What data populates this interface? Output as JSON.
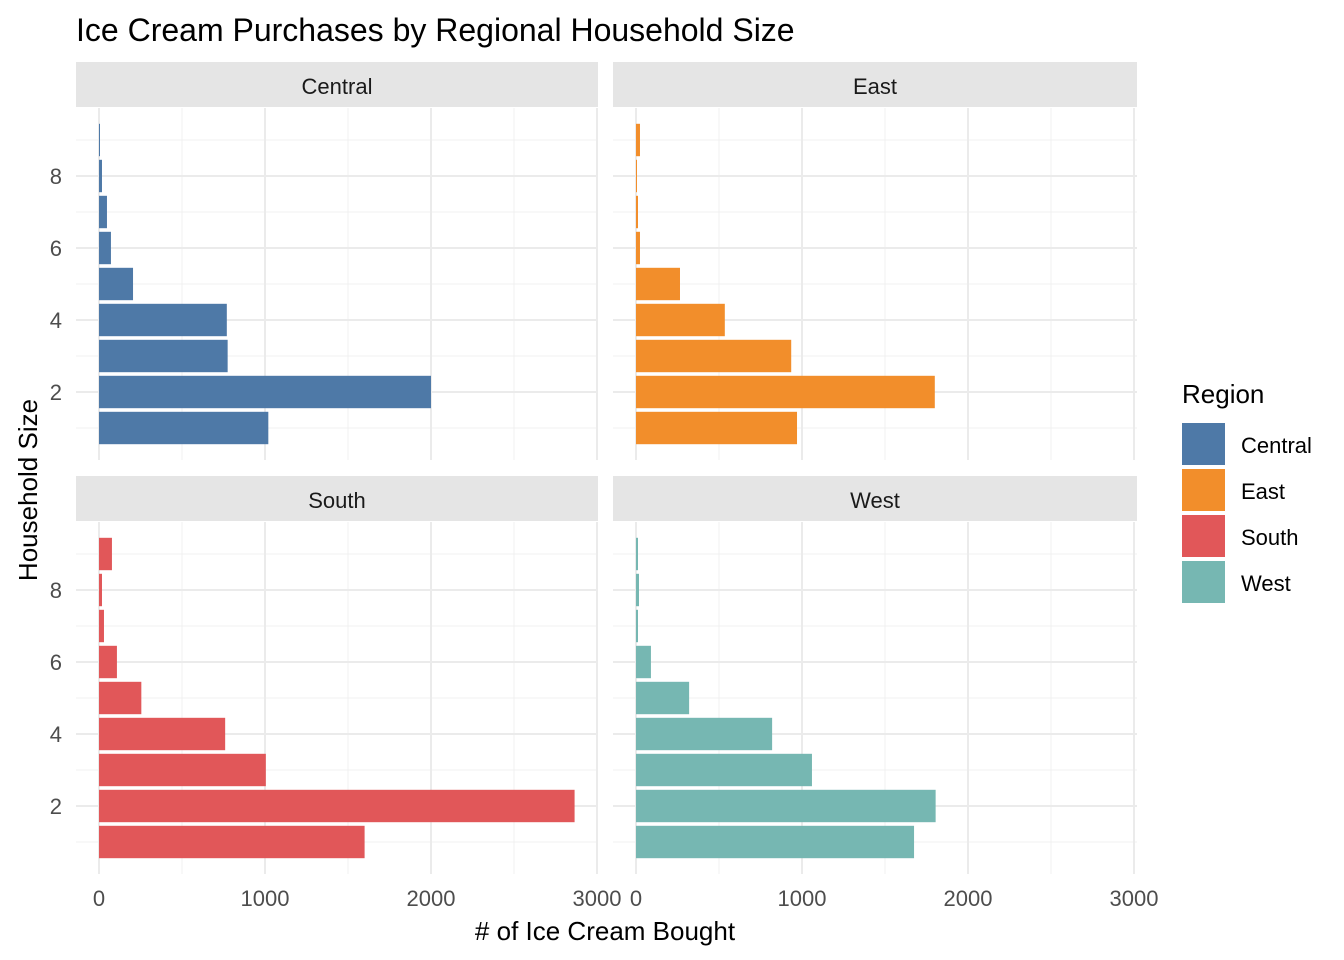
{
  "chart_data": {
    "type": "bar",
    "orientation": "horizontal",
    "title": "Ice Cream Purchases by Regional Household Size",
    "xlabel": "# of Ice Cream Bought",
    "ylabel": "Household Size",
    "xlim": [
      0,
      3000
    ],
    "xticks": [
      "0",
      "1000",
      "2000",
      "3000"
    ],
    "yticks": [
      "2",
      "4",
      "6",
      "8"
    ],
    "categories": [
      1,
      2,
      3,
      4,
      5,
      6,
      7,
      8,
      9
    ],
    "grid": true,
    "legend": {
      "title": "Region",
      "position": "right"
    },
    "facets": [
      {
        "name": "Central",
        "color": "#4E79A7",
        "values": [
          1020,
          2000,
          775,
          770,
          205,
          72,
          48,
          18,
          6
        ]
      },
      {
        "name": "East",
        "color": "#F28E2B",
        "values": [
          970,
          1800,
          935,
          535,
          265,
          24,
          12,
          6,
          24
        ]
      },
      {
        "name": "South",
        "color": "#E15759",
        "values": [
          1600,
          2865,
          1005,
          760,
          255,
          108,
          30,
          18,
          78
        ]
      },
      {
        "name": "West",
        "color": "#76B7B2",
        "values": [
          1675,
          1805,
          1060,
          820,
          320,
          90,
          12,
          18,
          12
        ]
      }
    ]
  }
}
